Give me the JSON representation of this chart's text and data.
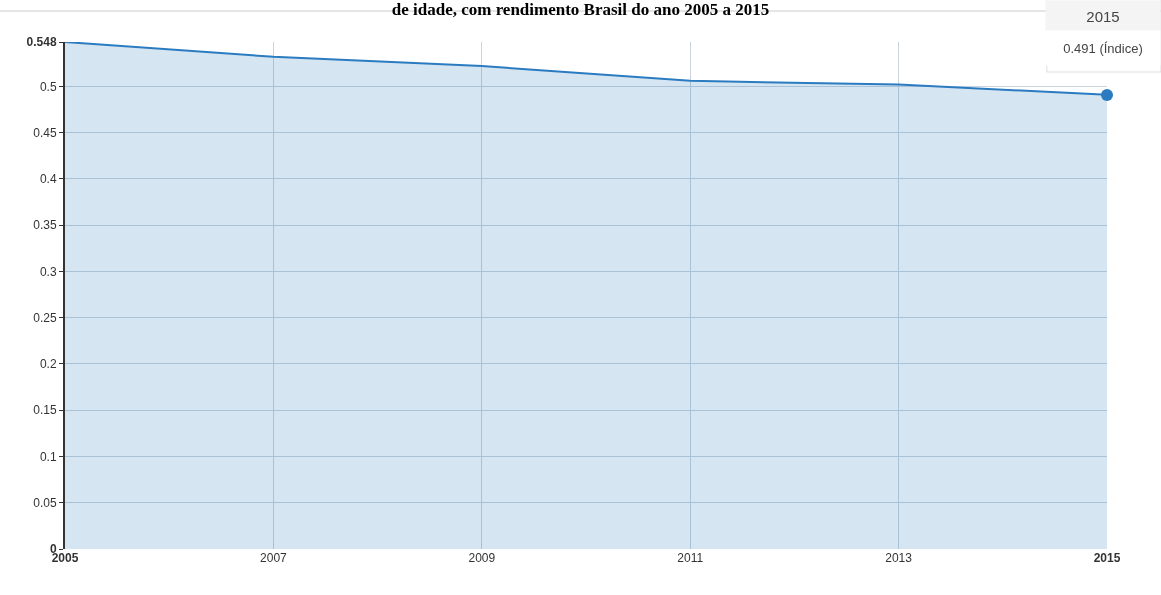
{
  "chart_data": {
    "type": "area",
    "title": "de idade, com rendimento Brasil do ano 2005 a 2015",
    "x": [
      2005,
      2007,
      2009,
      2011,
      2013,
      2015
    ],
    "series": [
      {
        "color": "#2b7bc0",
        "values": [
          0.548,
          0.532,
          0.522,
          0.506,
          0.502,
          0.491
        ]
      }
    ],
    "xlim": [
      2005,
      2015
    ],
    "xticks": [
      2005,
      2007,
      2009,
      2011,
      2013,
      2015
    ],
    "ylim": [
      0,
      0.548
    ],
    "yticks": [
      0,
      0.05,
      0.1,
      0.15,
      0.2,
      0.25,
      0.3,
      0.35,
      0.4,
      0.45,
      0.5,
      0.548
    ],
    "grid": true,
    "marker": "none",
    "line_style": "solid",
    "annotations": [
      "2015",
      "0.491 (Índice)"
    ]
  }
}
